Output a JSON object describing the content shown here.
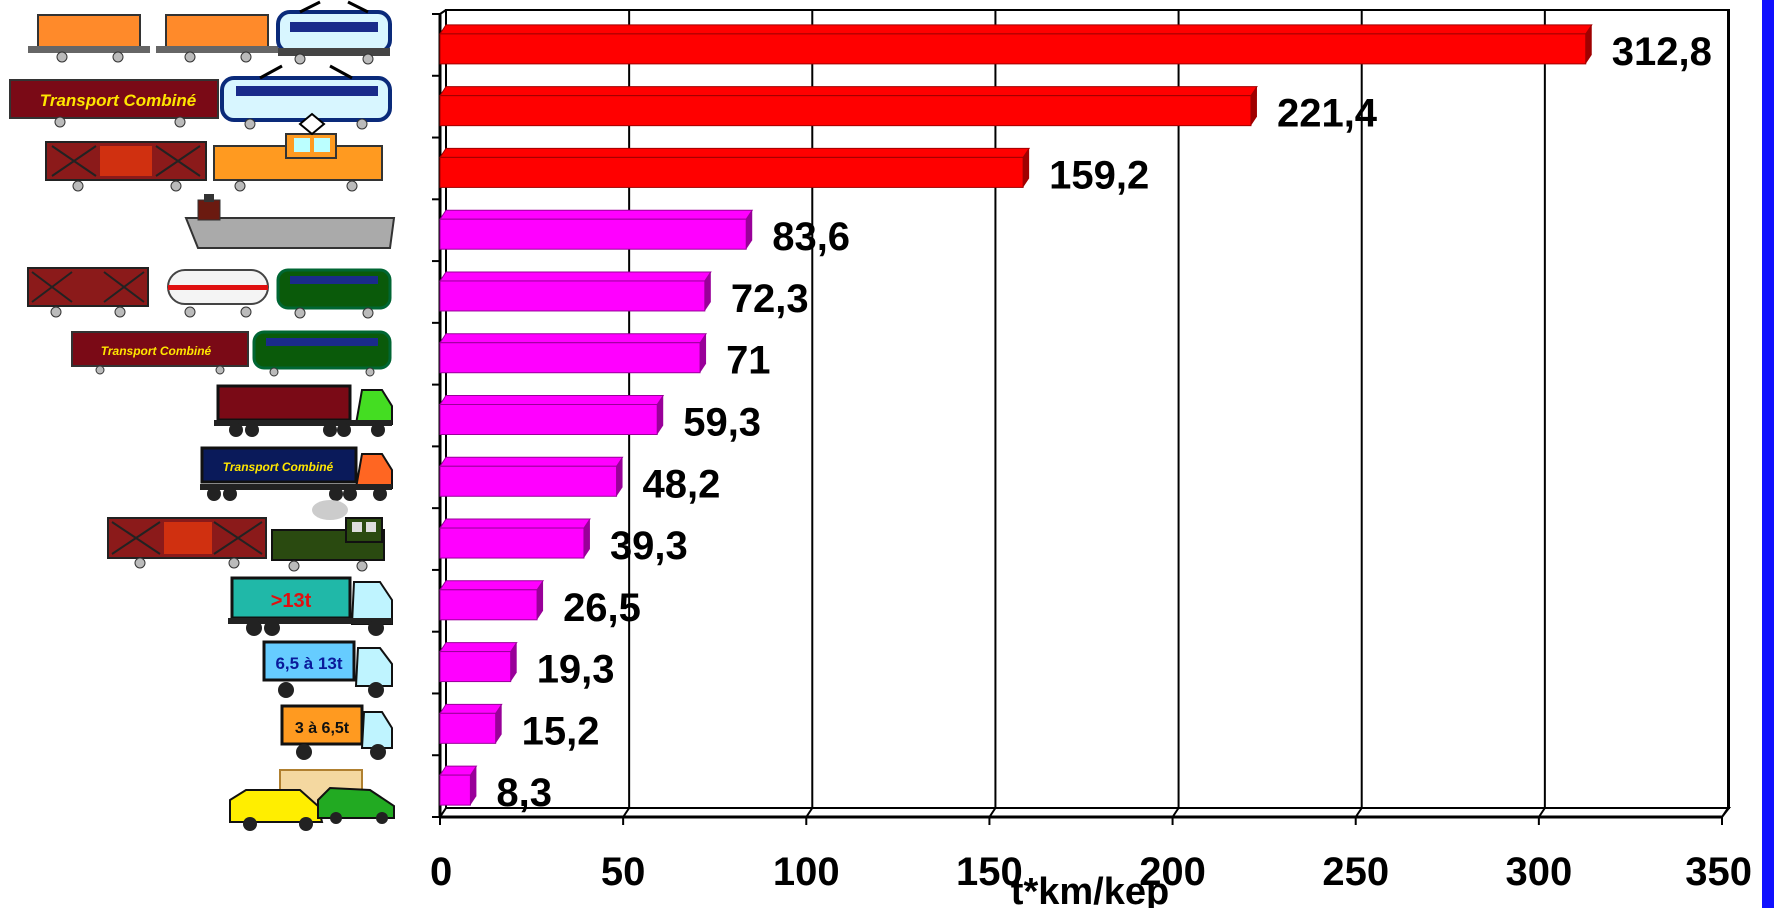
{
  "chart_data": {
    "type": "bar",
    "orientation": "horizontal",
    "title": "",
    "xlabel": "t*km/kep",
    "ylabel": "",
    "xlim": [
      0,
      350
    ],
    "xticks": [
      "0",
      "50",
      "100",
      "150",
      "200",
      "250",
      "300",
      "350"
    ],
    "grid": true,
    "legend": "none",
    "categories": [
      "freight-train-electric-large",
      "combined-transport-train-electric",
      "freight-train-diesel-shunter",
      "river-barge",
      "freight-train-electric-mixed",
      "combined-transport-train-small",
      "articulated-truck",
      "combined-transport-truck",
      "freight-train-diesel",
      "truck-over-13t",
      "truck-6-5-to-13t",
      "truck-3-to-6-5t",
      "light-vans"
    ],
    "values": [
      312.8,
      221.4,
      159.2,
      83.6,
      72.3,
      71,
      59.3,
      48.2,
      39.3,
      26.5,
      19.3,
      15.2,
      8.3
    ],
    "value_labels": [
      "312,8",
      "221,4",
      "159,2",
      "83,6",
      "72,3",
      "71",
      "59,3",
      "48,2",
      "39,3",
      "26,5",
      "19,3",
      "15,2",
      "8,3"
    ],
    "colors": {
      "rail_heavy": "#ff0000",
      "rail_heavy_dark": "#a00000",
      "other": "#ff00ff",
      "other_dark": "#990099",
      "right_strip": "#1010ff"
    },
    "icon_labels": {
      "combined_transport": "Transport Combiné",
      "truck_over_13t": ">13t",
      "truck_6_5_13t": "6,5 à 13t",
      "truck_3_6_5t": "3 à 6,5t"
    }
  }
}
